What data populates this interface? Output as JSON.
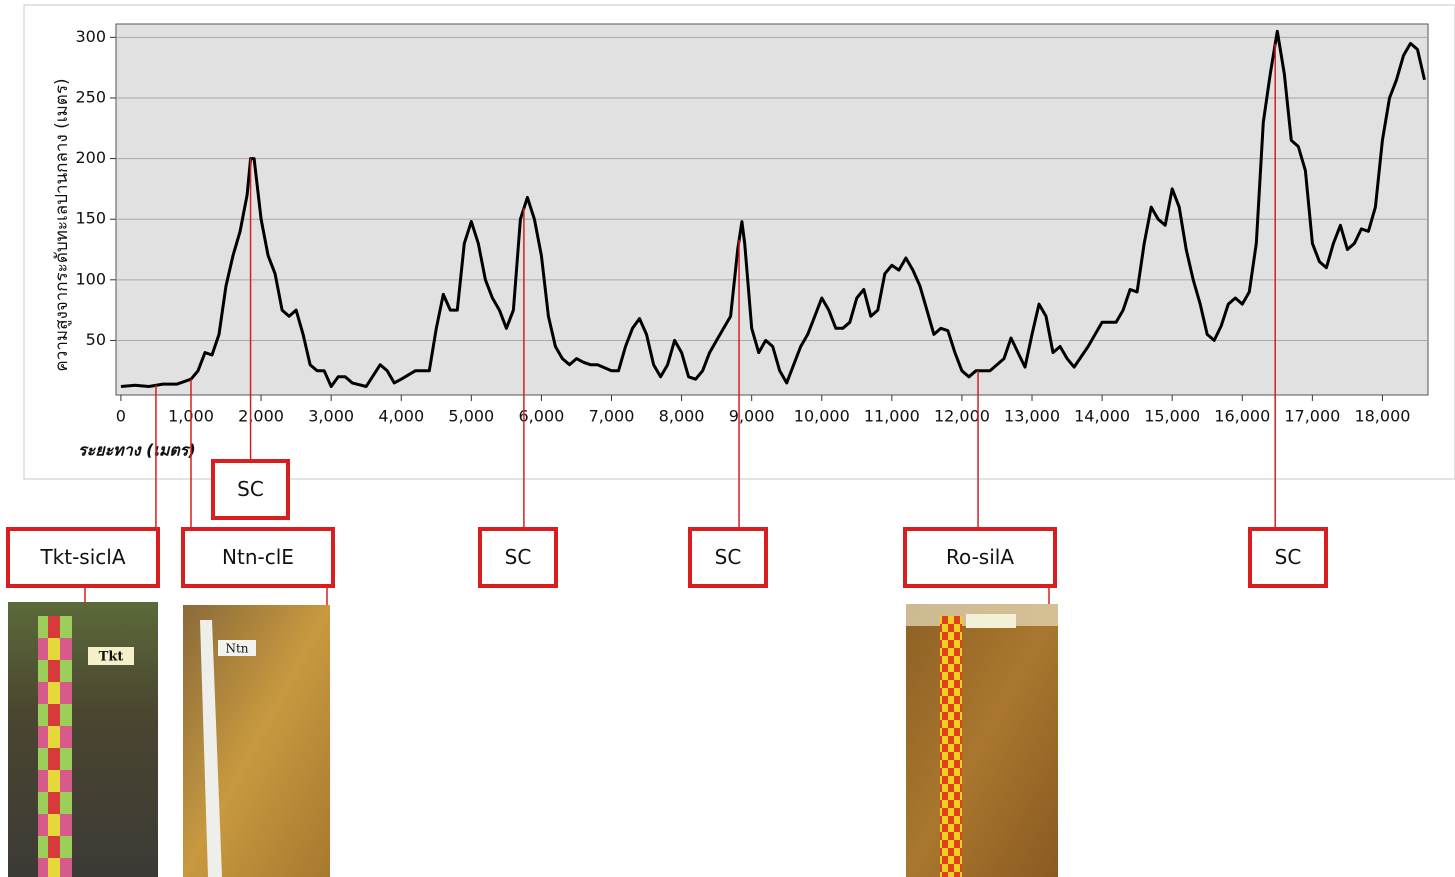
{
  "chart_data": {
    "type": "line",
    "ylabel": "ความสูงจากระดับทะเลปานกลาง (เมตร)",
    "xlabel": "ระยะทาง (เมตร)",
    "color": "#000000",
    "grid": true,
    "xlim": [
      -70,
      18650
    ],
    "ylim": [
      5,
      311
    ],
    "yticks": [
      50,
      100,
      150,
      200,
      250,
      300
    ],
    "xticks": [
      0,
      {
        "value": 1000,
        "label": "1,000"
      },
      {
        "value": 2000,
        "label": "2,000"
      },
      {
        "value": 3000,
        "label": "3,000"
      },
      {
        "value": 4000,
        "label": "4,000"
      },
      {
        "value": 5000,
        "label": "5,000"
      },
      {
        "value": 6000,
        "label": "6,000"
      },
      {
        "value": 7000,
        "label": "7,000"
      },
      {
        "value": 8000,
        "label": "8,000"
      },
      {
        "value": 9000,
        "label": "9,000"
      },
      {
        "value": 10000,
        "label": "10,000"
      },
      {
        "value": 11000,
        "label": "11,000"
      },
      {
        "value": 12000,
        "label": "12,000"
      },
      {
        "value": 13000,
        "label": "13,000"
      },
      {
        "value": 14000,
        "label": "14,000"
      },
      {
        "value": 15000,
        "label": "15,000"
      },
      {
        "value": 16000,
        "label": "16,000"
      },
      {
        "value": 17000,
        "label": "17,000"
      },
      {
        "value": 18000,
        "label": "18,000"
      }
    ],
    "x": [
      0,
      200,
      400,
      600,
      800,
      1000,
      1100,
      1200,
      1300,
      1400,
      1500,
      1600,
      1700,
      1800,
      1850,
      1900,
      2000,
      2100,
      2200,
      2300,
      2400,
      2500,
      2600,
      2700,
      2800,
      2900,
      3000,
      3100,
      3200,
      3300,
      3500,
      3700,
      3800,
      3900,
      4000,
      4200,
      4400,
      4500,
      4600,
      4700,
      4800,
      4900,
      5000,
      5100,
      5200,
      5300,
      5400,
      5500,
      5600,
      5700,
      5800,
      5900,
      6000,
      6100,
      6200,
      6300,
      6400,
      6500,
      6600,
      6700,
      6800,
      7000,
      7100,
      7200,
      7300,
      7400,
      7500,
      7600,
      7700,
      7800,
      7900,
      8000,
      8100,
      8200,
      8300,
      8400,
      8500,
      8600,
      8700,
      8800,
      8860,
      8900,
      9000,
      9100,
      9200,
      9300,
      9400,
      9500,
      9600,
      9700,
      9800,
      9900,
      10000,
      10100,
      10200,
      10300,
      10400,
      10500,
      10600,
      10700,
      10800,
      10900,
      11000,
      11100,
      11200,
      11300,
      11400,
      11500,
      11600,
      11700,
      11800,
      11900,
      12000,
      12100,
      12200,
      12400,
      12600,
      12700,
      12800,
      12900,
      13000,
      13100,
      13200,
      13300,
      13400,
      13500,
      13600,
      13800,
      14000,
      14200,
      14300,
      14400,
      14500,
      14600,
      14700,
      14800,
      14900,
      15000,
      15100,
      15200,
      15300,
      15400,
      15500,
      15600,
      15700,
      15800,
      15900,
      16000,
      16100,
      16200,
      16300,
      16400,
      16500,
      16600,
      16700,
      16800,
      16900,
      17000,
      17100,
      17200,
      17300,
      17400,
      17500,
      17600,
      17700,
      17800,
      17900,
      18000,
      18100,
      18200,
      18300,
      18400,
      18500,
      18600
    ],
    "values": [
      12,
      13,
      12,
      14,
      14,
      18,
      25,
      40,
      38,
      55,
      95,
      120,
      140,
      170,
      200,
      200,
      150,
      120,
      105,
      75,
      70,
      75,
      55,
      30,
      25,
      25,
      12,
      20,
      20,
      15,
      12,
      30,
      25,
      15,
      18,
      25,
      25,
      60,
      88,
      75,
      75,
      130,
      148,
      130,
      100,
      85,
      75,
      60,
      75,
      150,
      168,
      150,
      120,
      70,
      45,
      35,
      30,
      35,
      32,
      30,
      30,
      25,
      25,
      45,
      60,
      68,
      55,
      30,
      20,
      30,
      50,
      40,
      20,
      18,
      25,
      40,
      50,
      60,
      70,
      125,
      148,
      130,
      60,
      40,
      50,
      45,
      25,
      15,
      30,
      45,
      55,
      70,
      85,
      75,
      60,
      60,
      65,
      85,
      92,
      70,
      75,
      105,
      112,
      108,
      118,
      108,
      95,
      75,
      55,
      60,
      58,
      40,
      25,
      20,
      25,
      25,
      35,
      52,
      40,
      28,
      55,
      80,
      70,
      40,
      45,
      35,
      28,
      45,
      65,
      65,
      75,
      92,
      90,
      130,
      160,
      150,
      145,
      175,
      160,
      125,
      100,
      80,
      55,
      50,
      62,
      80,
      85,
      80,
      90,
      130,
      230,
      270,
      305,
      270,
      215,
      210,
      190,
      130,
      115,
      110,
      130,
      145,
      125,
      130,
      142,
      140,
      160,
      215,
      250,
      265,
      285,
      295,
      290,
      265
    ],
    "annotations": [
      {
        "label": "Tkt-siclA",
        "x": 500
      },
      {
        "label": "Ntn-clE",
        "x": 1000
      },
      {
        "label": "SC",
        "x": 1850
      },
      {
        "label": "SC",
        "x": 5750
      },
      {
        "label": "SC",
        "x": 8820
      },
      {
        "label": "Ro-silA",
        "x": 12230
      },
      {
        "label": "SC",
        "x": 16470
      }
    ]
  }
}
